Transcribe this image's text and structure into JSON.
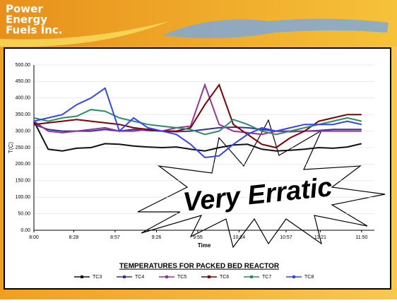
{
  "logo": [
    "Power",
    "Energy",
    "Fuels Inc."
  ],
  "chart_data": {
    "type": "line",
    "title": "TEMPERATURES FOR PACKED BED REACTOR",
    "x_label": "Time",
    "y_label": "T(C)",
    "annotation": "Very Erratic",
    "x": [
      480,
      490,
      500,
      510,
      520,
      530,
      540,
      550,
      560,
      570,
      580,
      590,
      600,
      610,
      620,
      630,
      640,
      650,
      660,
      670,
      680,
      690,
      700,
      710
    ],
    "xlim": [
      480,
      719
    ],
    "xticks": [
      {
        "value": 480,
        "label": "8:00"
      },
      {
        "value": 508,
        "label": "8:28"
      },
      {
        "value": 537,
        "label": "8:57"
      },
      {
        "value": 566,
        "label": "9:26"
      },
      {
        "value": 595,
        "label": "9:55"
      },
      {
        "value": 624,
        "label": "10:24"
      },
      {
        "value": 657,
        "label": "10:57"
      },
      {
        "value": 681,
        "label": "11:21"
      },
      {
        "value": 710,
        "label": "11:50"
      }
    ],
    "ylim": [
      0,
      500
    ],
    "yticks": [
      {
        "value": 0,
        "label": "0.00"
      },
      {
        "value": 50,
        "label": "50.00"
      },
      {
        "value": 100,
        "label": "100.00"
      },
      {
        "value": 150,
        "label": "150.00"
      },
      {
        "value": 200,
        "label": "200.00"
      },
      {
        "value": 250,
        "label": "250.00"
      },
      {
        "value": 300,
        "label": "300.00"
      },
      {
        "value": 350,
        "label": "350.00"
      },
      {
        "value": 400,
        "label": "400.00"
      },
      {
        "value": 450,
        "label": "450.00"
      },
      {
        "value": 500,
        "label": "500.00"
      }
    ],
    "grid": true,
    "series": [
      {
        "name": "TC3",
        "color": "#111111",
        "values": [
          330,
          245,
          240,
          248,
          250,
          262,
          260,
          255,
          252,
          250,
          252,
          245,
          240,
          250,
          258,
          260,
          245,
          240,
          242,
          245,
          250,
          248,
          252,
          262
        ]
      },
      {
        "name": "TC4",
        "color": "#333399",
        "values": [
          320,
          305,
          300,
          300,
          300,
          305,
          300,
          305,
          302,
          300,
          298,
          300,
          305,
          310,
          312,
          310,
          305,
          300,
          298,
          300,
          302,
          305,
          305,
          305
        ]
      },
      {
        "name": "TC5",
        "color": "#993399",
        "values": [
          330,
          300,
          295,
          300,
          305,
          310,
          300,
          300,
          305,
          300,
          310,
          315,
          440,
          320,
          300,
          295,
          290,
          300,
          300,
          300,
          300,
          300,
          300,
          300
        ]
      },
      {
        "name": "TC6",
        "color": "#800000",
        "values": [
          320,
          325,
          330,
          335,
          330,
          325,
          320,
          310,
          305,
          300,
          300,
          310,
          380,
          440,
          320,
          290,
          260,
          250,
          280,
          300,
          330,
          340,
          350,
          350
        ]
      },
      {
        "name": "TC7",
        "color": "#2e8b6a",
        "values": [
          340,
          330,
          340,
          345,
          365,
          360,
          340,
          330,
          320,
          315,
          310,
          305,
          290,
          300,
          335,
          320,
          300,
          290,
          300,
          310,
          320,
          330,
          340,
          330
        ]
      },
      {
        "name": "TC8",
        "color": "#3344ff",
        "values": [
          330,
          340,
          350,
          380,
          400,
          430,
          300,
          340,
          310,
          300,
          290,
          260,
          220,
          225,
          260,
          290,
          310,
          300,
          310,
          320,
          320,
          320,
          330,
          320
        ]
      }
    ]
  }
}
